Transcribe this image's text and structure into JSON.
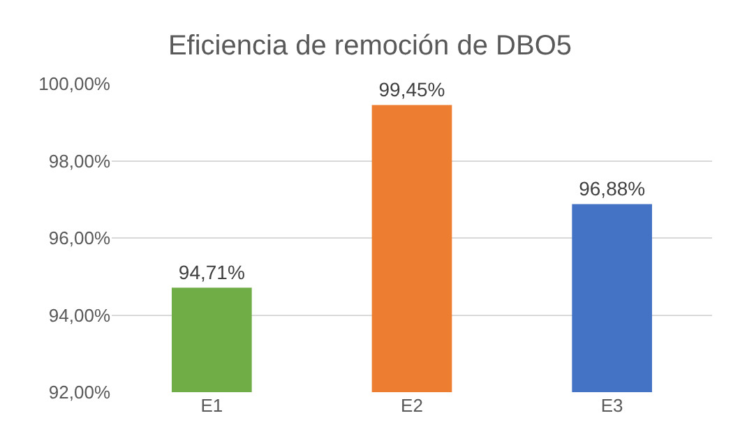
{
  "chart_data": {
    "type": "bar",
    "title": "Eficiencia de remoción de DBO5",
    "categories": [
      "E1",
      "E2",
      "E3"
    ],
    "values": [
      94.71,
      99.45,
      96.88
    ],
    "colors": [
      "#70ad47",
      "#ed7d31",
      "#4472c4"
    ],
    "value_labels": [
      "94,71%",
      "99,45%",
      "96,88%"
    ],
    "ylim": [
      92,
      100
    ],
    "yticks": [
      {
        "value": 92,
        "label": "92,00%"
      },
      {
        "value": 94,
        "label": "94,00%"
      },
      {
        "value": 96,
        "label": "96,00%"
      },
      {
        "value": 98,
        "label": "98,00%"
      },
      {
        "value": 100,
        "label": "100,00%"
      }
    ],
    "grid": "y",
    "legend": false
  }
}
